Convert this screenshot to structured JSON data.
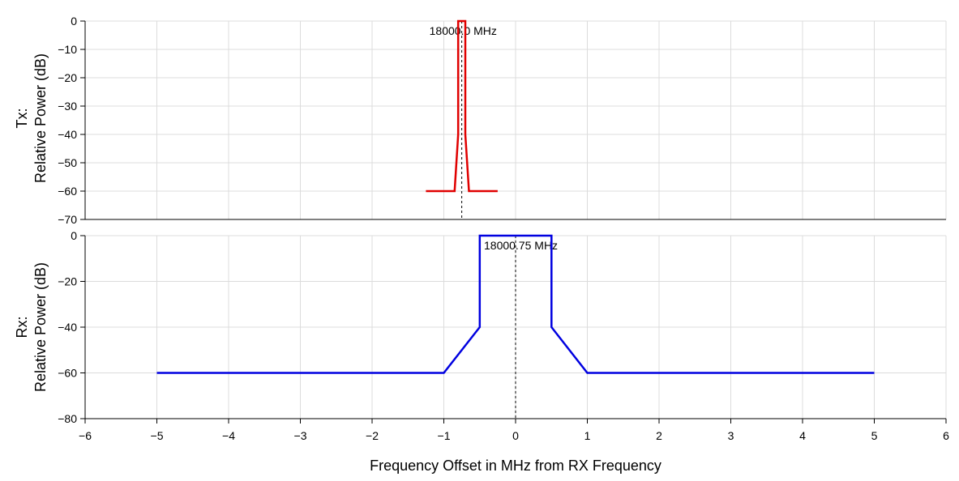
{
  "chart_data": [
    {
      "panel": "tx",
      "type": "line",
      "ylabel_lines": [
        "Tx:",
        "Relative Power (dB)"
      ],
      "xlim": [
        -6,
        6
      ],
      "ylim": [
        -70,
        0
      ],
      "yticks": [
        0,
        -10,
        -20,
        -30,
        -40,
        -50,
        -60,
        -70
      ],
      "xticks": [
        -6,
        -5,
        -4,
        -3,
        -2,
        -1,
        0,
        1,
        2,
        3,
        4,
        5,
        6
      ],
      "grid": true,
      "series": [
        {
          "color": "#e00000",
          "x": [
            -1.25,
            -0.85,
            -0.8,
            -0.8,
            -0.7,
            -0.7,
            -0.65,
            -0.25
          ],
          "y": [
            -60,
            -60,
            -40,
            0,
            0,
            -40,
            -60,
            -60
          ]
        }
      ],
      "marker": {
        "x": -0.75,
        "label": "18000.0 MHz"
      }
    },
    {
      "panel": "rx",
      "type": "line",
      "ylabel_lines": [
        "Rx:",
        "Relative Power (dB)"
      ],
      "xlabel": "Frequency Offset in MHz from RX Frequency",
      "xlim": [
        -6,
        6
      ],
      "ylim": [
        -80,
        0
      ],
      "yticks": [
        0,
        -20,
        -40,
        -60,
        -80
      ],
      "xticks": [
        -6,
        -5,
        -4,
        -3,
        -2,
        -1,
        0,
        1,
        2,
        3,
        4,
        5,
        6
      ],
      "grid": true,
      "series": [
        {
          "color": "#0000e0",
          "x": [
            -5,
            -1,
            -0.5,
            -0.5,
            0.5,
            0.5,
            1,
            5
          ],
          "y": [
            -60,
            -60,
            -40,
            0,
            0,
            -40,
            -60,
            -60
          ]
        }
      ],
      "marker": {
        "x": 0,
        "label": "18000.75 MHz"
      }
    }
  ]
}
